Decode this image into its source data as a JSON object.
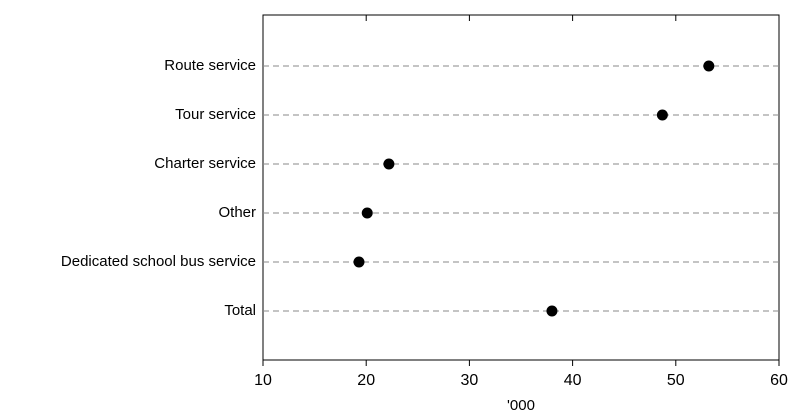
{
  "chart_data": {
    "type": "dot",
    "categories": [
      "Route service",
      "Tour service",
      "Charter service",
      "Other",
      "Dedicated school bus service",
      "Total"
    ],
    "values": [
      53.2,
      48.7,
      22.2,
      20.1,
      19.3,
      38.0
    ],
    "color": "#000000",
    "x_label": "'000",
    "xlim": [
      10,
      60
    ],
    "xticks": [
      10,
      20,
      30,
      40,
      50,
      60
    ],
    "grid": true
  }
}
